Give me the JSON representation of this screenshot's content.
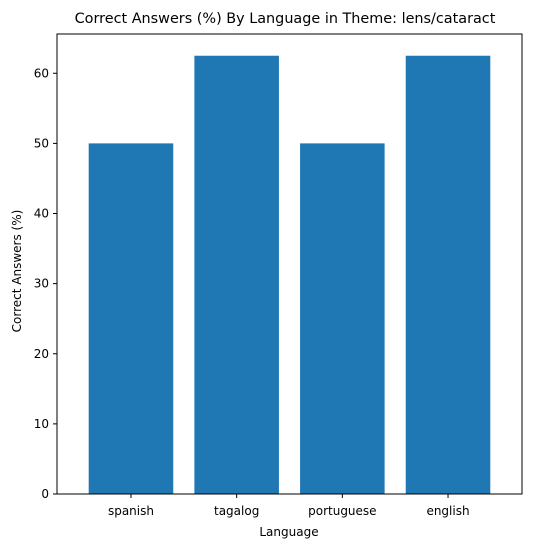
{
  "chart_data": {
    "type": "bar",
    "title": "Correct Answers (%) By Language in Theme: lens/cataract",
    "xlabel": "Language",
    "ylabel": "Correct Answers (%)",
    "categories": [
      "spanish",
      "tagalog",
      "portuguese",
      "english"
    ],
    "values": [
      50.0,
      62.5,
      50.0,
      62.5
    ],
    "ylim": [
      0,
      65.6
    ],
    "yticks": [
      0,
      10,
      20,
      30,
      40,
      50,
      60
    ],
    "grid": false,
    "legend": "none",
    "bar_color": "#1f77b4"
  }
}
